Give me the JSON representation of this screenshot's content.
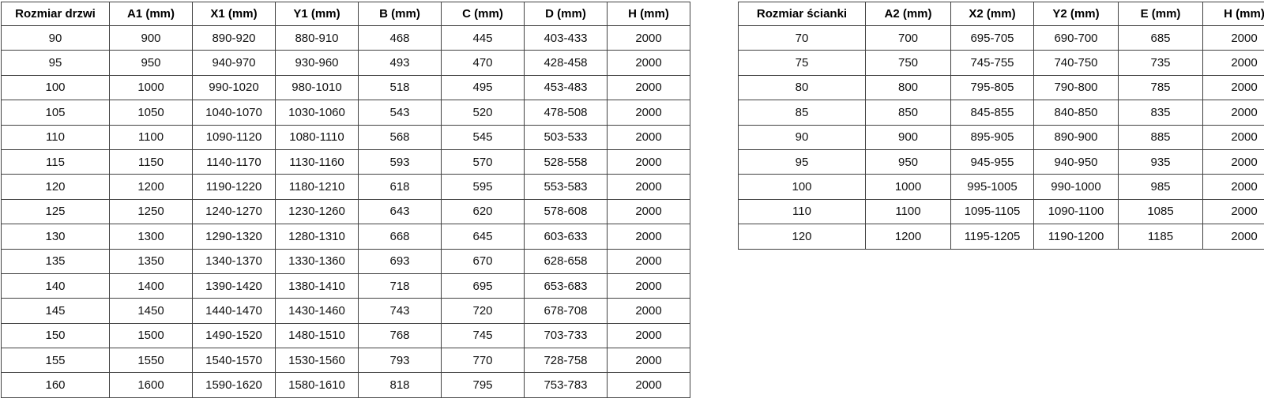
{
  "page": {
    "background_color": "#ffffff",
    "table_border_color": "#414141",
    "text_color": "#111111"
  },
  "door_table": {
    "headers": [
      "Rozmiar drzwi",
      "A1 (mm)",
      "X1 (mm)",
      "Y1 (mm)",
      "B (mm)",
      "C (mm)",
      "D (mm)",
      "H (mm)"
    ],
    "rows": [
      [
        "90",
        "900",
        "890-920",
        "880-910",
        "468",
        "445",
        "403-433",
        "2000"
      ],
      [
        "95",
        "950",
        "940-970",
        "930-960",
        "493",
        "470",
        "428-458",
        "2000"
      ],
      [
        "100",
        "1000",
        "990-1020",
        "980-1010",
        "518",
        "495",
        "453-483",
        "2000"
      ],
      [
        "105",
        "1050",
        "1040-1070",
        "1030-1060",
        "543",
        "520",
        "478-508",
        "2000"
      ],
      [
        "110",
        "1100",
        "1090-1120",
        "1080-1110",
        "568",
        "545",
        "503-533",
        "2000"
      ],
      [
        "115",
        "1150",
        "1140-1170",
        "1130-1160",
        "593",
        "570",
        "528-558",
        "2000"
      ],
      [
        "120",
        "1200",
        "1190-1220",
        "1180-1210",
        "618",
        "595",
        "553-583",
        "2000"
      ],
      [
        "125",
        "1250",
        "1240-1270",
        "1230-1260",
        "643",
        "620",
        "578-608",
        "2000"
      ],
      [
        "130",
        "1300",
        "1290-1320",
        "1280-1310",
        "668",
        "645",
        "603-633",
        "2000"
      ],
      [
        "135",
        "1350",
        "1340-1370",
        "1330-1360",
        "693",
        "670",
        "628-658",
        "2000"
      ],
      [
        "140",
        "1400",
        "1390-1420",
        "1380-1410",
        "718",
        "695",
        "653-683",
        "2000"
      ],
      [
        "145",
        "1450",
        "1440-1470",
        "1430-1460",
        "743",
        "720",
        "678-708",
        "2000"
      ],
      [
        "150",
        "1500",
        "1490-1520",
        "1480-1510",
        "768",
        "745",
        "703-733",
        "2000"
      ],
      [
        "155",
        "1550",
        "1540-1570",
        "1530-1560",
        "793",
        "770",
        "728-758",
        "2000"
      ],
      [
        "160",
        "1600",
        "1590-1620",
        "1580-1610",
        "818",
        "795",
        "753-783",
        "2000"
      ]
    ]
  },
  "wall_table": {
    "headers": [
      "Rozmiar ścianki",
      "A2 (mm)",
      "X2 (mm)",
      "Y2 (mm)",
      "E (mm)",
      "H (mm)"
    ],
    "rows": [
      [
        "70",
        "700",
        "695-705",
        "690-700",
        "685",
        "2000"
      ],
      [
        "75",
        "750",
        "745-755",
        "740-750",
        "735",
        "2000"
      ],
      [
        "80",
        "800",
        "795-805",
        "790-800",
        "785",
        "2000"
      ],
      [
        "85",
        "850",
        "845-855",
        "840-850",
        "835",
        "2000"
      ],
      [
        "90",
        "900",
        "895-905",
        "890-900",
        "885",
        "2000"
      ],
      [
        "95",
        "950",
        "945-955",
        "940-950",
        "935",
        "2000"
      ],
      [
        "100",
        "1000",
        "995-1005",
        "990-1000",
        "985",
        "2000"
      ],
      [
        "110",
        "1100",
        "1095-1105",
        "1090-1100",
        "1085",
        "2000"
      ],
      [
        "120",
        "1200",
        "1195-1205",
        "1190-1200",
        "1185",
        "2000"
      ]
    ]
  }
}
